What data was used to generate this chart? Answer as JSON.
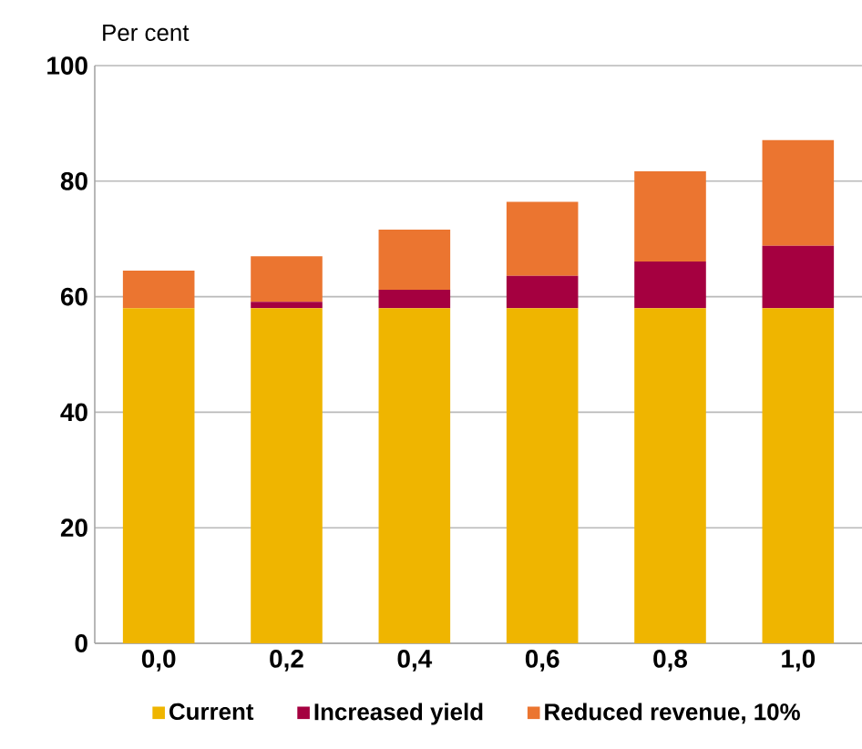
{
  "chart_data": {
    "type": "bar",
    "stacked": true,
    "ylabel": "Per cent",
    "categories": [
      "0,0",
      "0,2",
      "0,4",
      "0,6",
      "0,8",
      "1,0"
    ],
    "series": [
      {
        "name": "Current",
        "color": "#efb500",
        "values": [
          58.0,
          58.0,
          58.0,
          58.0,
          58.0,
          58.0
        ]
      },
      {
        "name": "Increased yield",
        "color": "#a50040",
        "values": [
          0,
          1.1,
          3.2,
          5.6,
          8.1,
          10.8
        ]
      },
      {
        "name": "Reduced revenue, 10%",
        "color": "#eb7530",
        "values": [
          6.5,
          7.9,
          10.4,
          12.8,
          15.6,
          18.3
        ]
      }
    ],
    "ylim": [
      0,
      100
    ],
    "yticks": [
      0,
      20,
      40,
      60,
      80,
      100
    ],
    "grid": "y",
    "legend": "bottom"
  }
}
